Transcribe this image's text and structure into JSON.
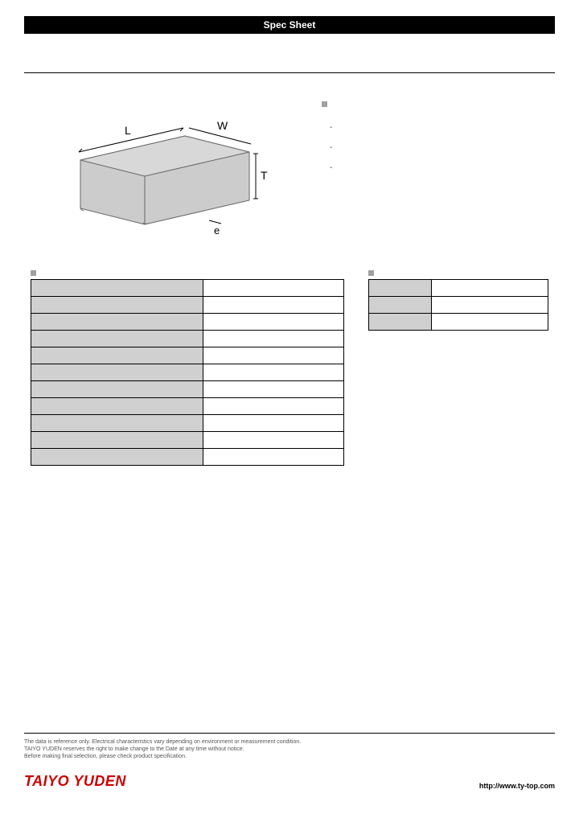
{
  "header": {
    "title": "Spec Sheet"
  },
  "diagram": {
    "labels": {
      "L": "L",
      "W": "W",
      "T": "T",
      "e": "e"
    },
    "fill_color": "#cccccc",
    "stroke_color": "#666666"
  },
  "bullets": {
    "square_color": "#a0a0a0",
    "items": [
      "",
      "",
      ""
    ]
  },
  "spec_table": {
    "rows": [
      {
        "label": "",
        "value": ""
      },
      {
        "label": "",
        "value": ""
      },
      {
        "label": "",
        "value": ""
      },
      {
        "label": "",
        "value": ""
      },
      {
        "label": "",
        "value": ""
      },
      {
        "label": "",
        "value": ""
      },
      {
        "label": "",
        "value": ""
      },
      {
        "label": "",
        "value": ""
      },
      {
        "label": "",
        "value": ""
      },
      {
        "label": "",
        "value": ""
      },
      {
        "label": "",
        "value": ""
      }
    ],
    "label_bg": "#d0d0d0",
    "value_bg": "#ffffff",
    "border_color": "#000000"
  },
  "side_table": {
    "rows": [
      {
        "label": "",
        "value": ""
      },
      {
        "label": "",
        "value": ""
      },
      {
        "label": "",
        "value": ""
      }
    ],
    "label_bg": "#d0d0d0",
    "value_bg": "#ffffff"
  },
  "footer": {
    "disclaimer_line1": "The data is reference only. Electrical characteristics vary depending on environment or measurement condition.",
    "disclaimer_line2": "TAIYO YUDEN reserves the right to make change to the Date at any time without notice.",
    "disclaimer_line3": "Before making final selection, please check product specification.",
    "brand": "TAIYO YUDEN",
    "brand_color": "#cc0000",
    "url": "http://www.ty-top.com"
  }
}
